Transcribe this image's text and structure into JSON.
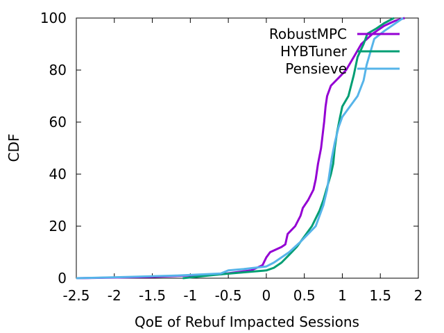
{
  "chart_data": {
    "type": "line",
    "title": "",
    "xlabel": "QoE of Rebuf Impacted Sessions",
    "ylabel": "CDF",
    "xlim": [
      -2.5,
      2
    ],
    "ylim": [
      0,
      100
    ],
    "xticks": [
      -2.5,
      -2,
      -1.5,
      -1,
      -0.5,
      0,
      0.5,
      1,
      1.5,
      2
    ],
    "xtick_labels": [
      "-2.5",
      "-2",
      "-1.5",
      "-1",
      "-0.5",
      "0",
      "0.5",
      "1",
      "1.5",
      "2"
    ],
    "yticks": [
      0,
      20,
      40,
      60,
      80,
      100
    ],
    "ytick_labels": [
      "0",
      "20",
      "40",
      "60",
      "80",
      "100"
    ],
    "grid": false,
    "legend_position": "top-right",
    "series": [
      {
        "name": "RobustMPC",
        "color": "#9400d3",
        "points": [
          [
            -2.5,
            0
          ],
          [
            -1.5,
            0.5
          ],
          [
            -0.6,
            1.5
          ],
          [
            -0.2,
            3
          ],
          [
            -0.05,
            5
          ],
          [
            0.0,
            8
          ],
          [
            0.05,
            10
          ],
          [
            0.2,
            12
          ],
          [
            0.25,
            13
          ],
          [
            0.28,
            17
          ],
          [
            0.38,
            20
          ],
          [
            0.45,
            24
          ],
          [
            0.48,
            27
          ],
          [
            0.55,
            30
          ],
          [
            0.62,
            34
          ],
          [
            0.65,
            38
          ],
          [
            0.68,
            44
          ],
          [
            0.72,
            50
          ],
          [
            0.76,
            60
          ],
          [
            0.78,
            66
          ],
          [
            0.8,
            70
          ],
          [
            0.85,
            74
          ],
          [
            0.95,
            77
          ],
          [
            1.05,
            80
          ],
          [
            1.15,
            85
          ],
          [
            1.25,
            90
          ],
          [
            1.4,
            94
          ],
          [
            1.55,
            97
          ],
          [
            1.7,
            99
          ],
          [
            1.82,
            100
          ]
        ]
      },
      {
        "name": "HYBTuner",
        "color": "#009e73",
        "points": [
          [
            -1.1,
            0
          ],
          [
            -0.6,
            1.5
          ],
          [
            -0.2,
            2.5
          ],
          [
            0.0,
            3
          ],
          [
            0.1,
            4
          ],
          [
            0.2,
            6
          ],
          [
            0.3,
            9
          ],
          [
            0.4,
            12
          ],
          [
            0.5,
            16
          ],
          [
            0.6,
            20
          ],
          [
            0.65,
            23
          ],
          [
            0.7,
            26
          ],
          [
            0.75,
            30
          ],
          [
            0.8,
            35
          ],
          [
            0.85,
            40
          ],
          [
            0.88,
            44
          ],
          [
            0.9,
            50
          ],
          [
            0.93,
            56
          ],
          [
            0.97,
            62
          ],
          [
            1.0,
            66
          ],
          [
            1.08,
            70
          ],
          [
            1.15,
            78
          ],
          [
            1.2,
            85
          ],
          [
            1.28,
            90
          ],
          [
            1.33,
            94
          ],
          [
            1.45,
            96
          ],
          [
            1.55,
            98
          ],
          [
            1.68,
            100
          ]
        ]
      },
      {
        "name": "Pensieve",
        "color": "#56b4e9",
        "points": [
          [
            -2.5,
            0
          ],
          [
            -1.8,
            0.5
          ],
          [
            -1.2,
            1
          ],
          [
            -0.6,
            1.8
          ],
          [
            -0.5,
            3
          ],
          [
            -0.3,
            3.5
          ],
          [
            0.0,
            4.5
          ],
          [
            0.1,
            6
          ],
          [
            0.2,
            8
          ],
          [
            0.3,
            10
          ],
          [
            0.45,
            14
          ],
          [
            0.55,
            17
          ],
          [
            0.65,
            20
          ],
          [
            0.7,
            24
          ],
          [
            0.75,
            28
          ],
          [
            0.8,
            34
          ],
          [
            0.83,
            40
          ],
          [
            0.86,
            46
          ],
          [
            0.9,
            52
          ],
          [
            0.95,
            58
          ],
          [
            1.0,
            62
          ],
          [
            1.1,
            66
          ],
          [
            1.2,
            70
          ],
          [
            1.28,
            76
          ],
          [
            1.32,
            82
          ],
          [
            1.38,
            88
          ],
          [
            1.42,
            92
          ],
          [
            1.55,
            95
          ],
          [
            1.7,
            98
          ],
          [
            1.8,
            100
          ]
        ]
      }
    ]
  }
}
